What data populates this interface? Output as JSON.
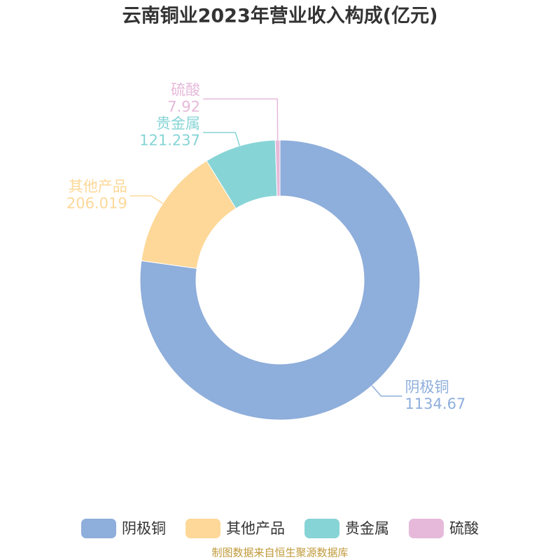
{
  "chart_data": {
    "type": "donut",
    "title": "云南铜业2023年营业收入构成(亿元)",
    "categories": [
      "阴极铜",
      "其他产品",
      "贵金属",
      "硫酸"
    ],
    "values": [
      1134.67,
      206.019,
      121.237,
      7.92
    ],
    "colors": [
      "#8eaedb",
      "#fdd898",
      "#87d4d6",
      "#e6b9da"
    ],
    "legend": "bottom",
    "source": "制图数据来自恒生聚源数据库"
  }
}
